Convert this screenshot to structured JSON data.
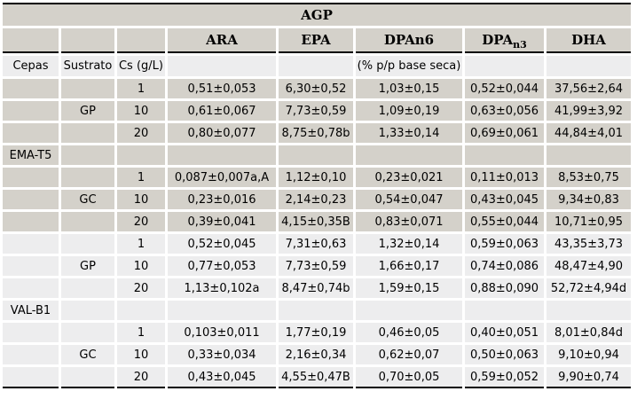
{
  "table": {
    "title": "AGP",
    "unit_note": "(% p/p base seca)",
    "col_keys": [
      "cepa",
      "sustrato",
      "cs",
      "ara",
      "epa",
      "dpan6",
      "dpan3",
      "dha"
    ],
    "header": {
      "ara": "ARA",
      "epa": "EPA",
      "dpan6": "DPAn6",
      "dpan3_base": "DPA",
      "dpan3_sub": "n3",
      "dha": "DHA"
    },
    "subheader": {
      "cepa": "Cepas",
      "sustrato": "Sustrato",
      "cs": "Cs (g/L)"
    },
    "colors": {
      "section_dark": "#d4d1ca",
      "section_light": "#ededee",
      "rule": "#000000"
    },
    "rows": [
      {
        "shade": "dark",
        "cepa": "",
        "sustrato": "",
        "cs": "1",
        "ara": "0,51±0,053",
        "epa": "6,30±0,52",
        "dpan6": "1,03±0,15",
        "dpan3": "0,52±0,044",
        "dha": "37,56±2,64"
      },
      {
        "shade": "dark",
        "cepa": "",
        "sustrato": "GP",
        "cs": "10",
        "ara": "0,61±0,067",
        "epa": "7,73±0,59",
        "dpan6": "1,09±0,19",
        "dpan3": "0,63±0,056",
        "dha": "41,99±3,92"
      },
      {
        "shade": "dark",
        "cepa": "",
        "sustrato": "",
        "cs": "20",
        "ara": "0,80±0,077",
        "epa": "8,75±0,78b",
        "dpan6": "1,33±0,14",
        "dpan3": "0,69±0,061",
        "dha": "44,84±4,01"
      },
      {
        "shade": "dark",
        "cepa": "EMA-T5",
        "sustrato": "",
        "cs": "",
        "ara": "",
        "epa": "",
        "dpan6": "",
        "dpan3": "",
        "dha": ""
      },
      {
        "shade": "dark",
        "cepa": "",
        "sustrato": "",
        "cs": "1",
        "ara": "0,087±0,007a,A",
        "epa": "1,12±0,10",
        "dpan6": "0,23±0,021",
        "dpan3": "0,11±0,013",
        "dha": "8,53±0,75"
      },
      {
        "shade": "dark",
        "cepa": "",
        "sustrato": "GC",
        "cs": "10",
        "ara": "0,23±0,016",
        "epa": "2,14±0,23",
        "dpan6": "0,54±0,047",
        "dpan3": "0,43±0,045",
        "dha": "9,34±0,83"
      },
      {
        "shade": "dark",
        "cepa": "",
        "sustrato": "",
        "cs": "20",
        "ara": "0,39±0,041",
        "epa": "4,15±0,35B",
        "dpan6": "0,83±0,071",
        "dpan3": "0,55±0,044",
        "dha": "10,71±0,95"
      },
      {
        "shade": "light",
        "cepa": "",
        "sustrato": "",
        "cs": "1",
        "ara": "0,52±0,045",
        "epa": "7,31±0,63",
        "dpan6": "1,32±0,14",
        "dpan3": "0,59±0,063",
        "dha": "43,35±3,73"
      },
      {
        "shade": "light",
        "cepa": "",
        "sustrato": "GP",
        "cs": "10",
        "ara": "0,77±0,053",
        "epa": "7,73±0,59",
        "dpan6": "1,66±0,17",
        "dpan3": "0,74±0,086",
        "dha": "48,47±4,90"
      },
      {
        "shade": "light",
        "cepa": "",
        "sustrato": "",
        "cs": "20",
        "ara": "1,13±0,102a",
        "epa": "8,47±0,74b",
        "dpan6": "1,59±0,15",
        "dpan3": "0,88±0,090",
        "dha": "52,72±4,94d"
      },
      {
        "shade": "light",
        "cepa": "VAL-B1",
        "sustrato": "",
        "cs": "",
        "ara": "",
        "epa": "",
        "dpan6": "",
        "dpan3": "",
        "dha": ""
      },
      {
        "shade": "light",
        "cepa": "",
        "sustrato": "",
        "cs": "1",
        "ara": "0,103±0,011",
        "epa": "1,77±0,19",
        "dpan6": "0,46±0,05",
        "dpan3": "0,40±0,051",
        "dha": "8,01±0,84d"
      },
      {
        "shade": "light",
        "cepa": "",
        "sustrato": "GC",
        "cs": "10",
        "ara": "0,33±0,034",
        "epa": "2,16±0,34",
        "dpan6": "0,62±0,07",
        "dpan3": "0,50±0,063",
        "dha": "9,10±0,94"
      },
      {
        "shade": "light",
        "cepa": "",
        "sustrato": "",
        "cs": "20",
        "ara": "0,43±0,045",
        "epa": "4,55±0,47B",
        "dpan6": "0,70±0,05",
        "dpan3": "0,59±0,052",
        "dha": "9,90±0,74"
      }
    ]
  }
}
